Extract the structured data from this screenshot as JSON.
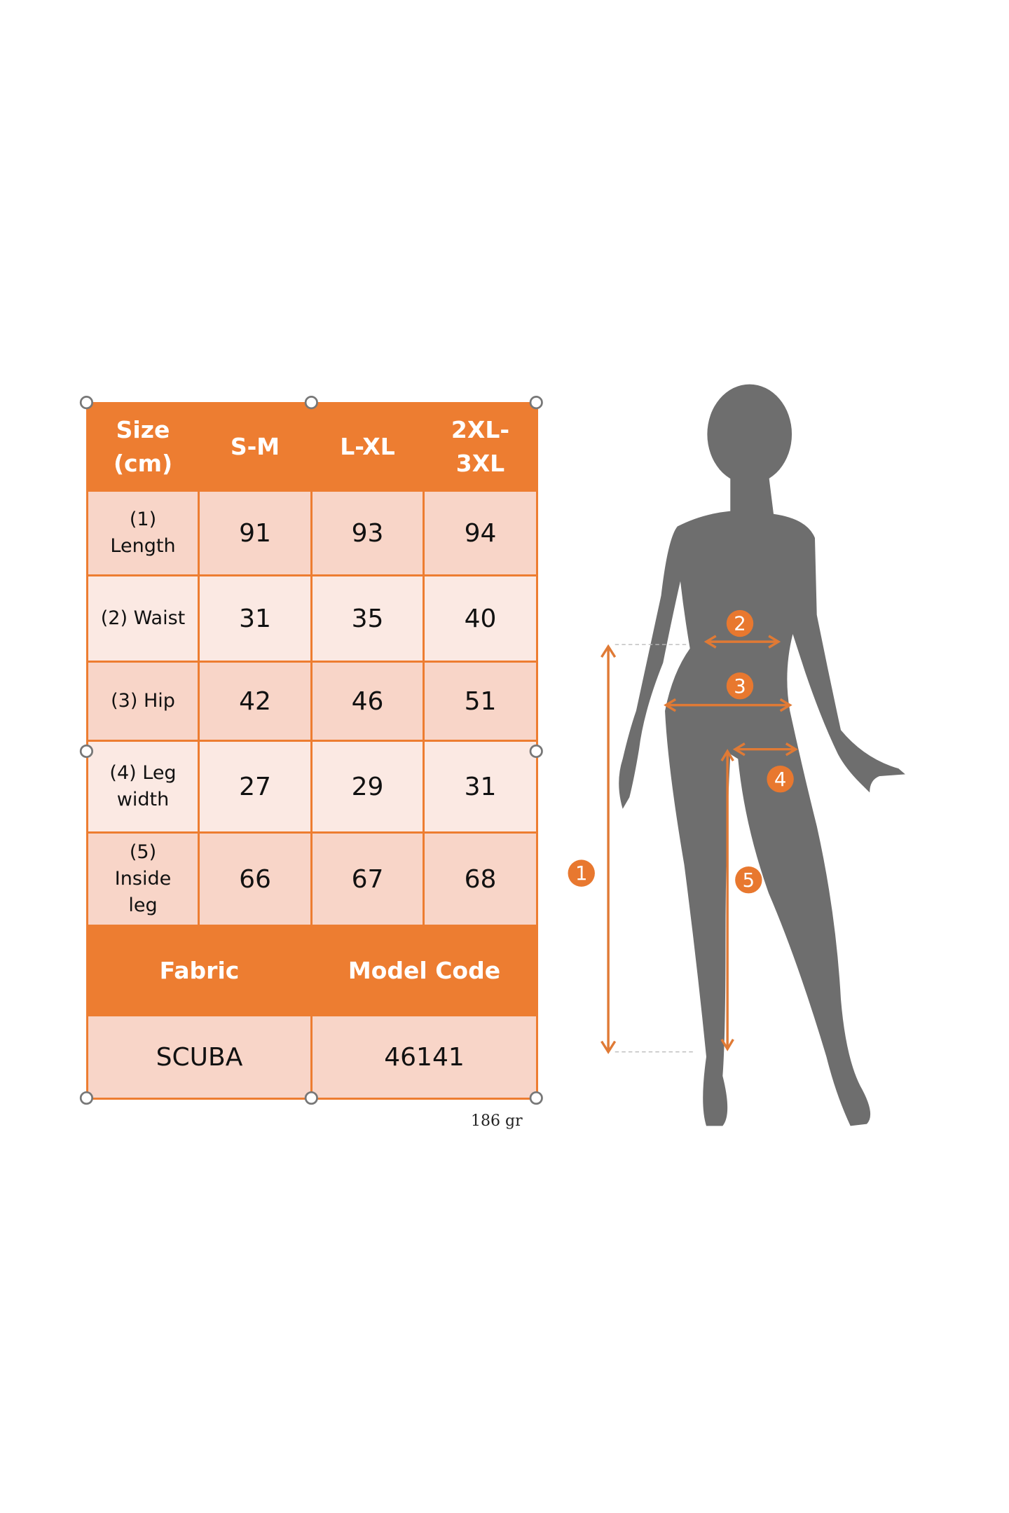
{
  "table": {
    "header": [
      "Size (cm)",
      "S-M",
      "L-XL",
      "2XL-3XL"
    ],
    "rows": [
      {
        "label": "(1) Length",
        "values": [
          "91",
          "93",
          "94"
        ]
      },
      {
        "label": "(2) Waist",
        "values": [
          "31",
          "35",
          "40"
        ]
      },
      {
        "label": "(3) Hip",
        "values": [
          "42",
          "46",
          "51"
        ]
      },
      {
        "label": "(4) Leg width",
        "values": [
          "27",
          "29",
          "31"
        ]
      },
      {
        "label": "(5) Inside leg",
        "values": [
          "66",
          "67",
          "68"
        ]
      }
    ],
    "footer_header": [
      "Fabric",
      "Model Code"
    ],
    "footer_values": [
      "SCUBA",
      "46141"
    ]
  },
  "weight": "186 gr",
  "figure": {
    "markers": [
      "1",
      "2",
      "3",
      "4",
      "5"
    ]
  },
  "colors": {
    "accent": "#ED7D31",
    "row_dark": "#F8D5C8",
    "row_light": "#FBE9E3",
    "silhouette": "#6E6E6E"
  }
}
